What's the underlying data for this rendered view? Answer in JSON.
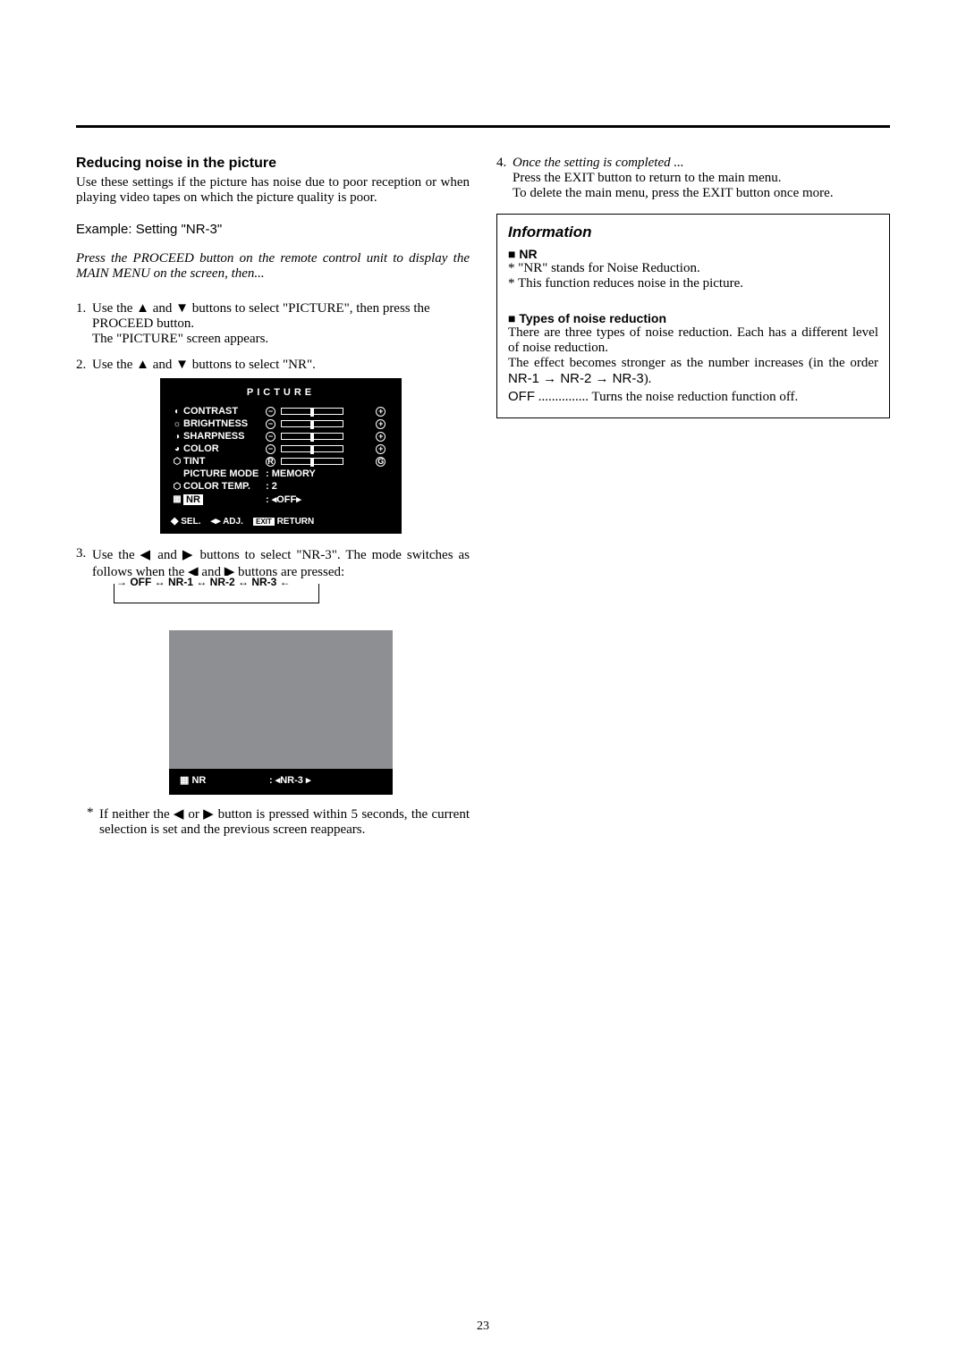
{
  "page_number": "23",
  "left": {
    "heading": "Reducing noise in the picture",
    "intro": "Use these settings if the picture has noise due to poor reception or when playing video tapes on which the picture quality is poor.",
    "example": "Example: Setting \"NR-3\"",
    "prep": "Press the PROCEED button on the remote control unit to display the MAIN MENU on the screen, then...",
    "step1_num": "1.",
    "step1a": "Use the ▲ and ▼ buttons to select \"PICTURE\", then press the PROCEED button.",
    "step1b": "The \"PICTURE\" screen appears.",
    "step2_num": "2.",
    "step2": "Use the ▲ and ▼ buttons to select \"NR\".",
    "menu1": {
      "title": "PICTURE",
      "contrast_ic": "◐",
      "contrast": "CONTRAST",
      "brightness_ic": "☼",
      "brightness": "BRIGHTNESS",
      "sharpness_ic": "◑",
      "sharpness": "SHARPNESS",
      "color_ic": "◕",
      "color": "COLOR",
      "tint_ic": "⬡",
      "tint": "TINT",
      "picmode": "PICTURE MODE",
      "picmode_val": ":   MEMORY",
      "colortemp_ic": "⬡",
      "colortemp": "COLOR TEMP.",
      "colortemp_val": ":   2",
      "nr_ic": "▦",
      "nr": "NR",
      "nr_val": ": ◂OFF▸",
      "R": "R",
      "G": "G",
      "foot_sel": "SEL.",
      "foot_adj": "ADJ.",
      "foot_exit": "EXIT",
      "foot_return": "RETURN"
    },
    "step3_num": "3.",
    "step3a": "Use the  ◀  and  ▶ buttons to select \"NR-3\". The mode switches as follows when the ◀ and ▶ buttons are pressed:",
    "cycle": "→ OFF ↔ NR-1 ↔ NR-2 ↔ NR-3 ←",
    "menu2": {
      "nr_ic": "▦",
      "nr": "NR",
      "nr_val": ": ◂NR-3 ▸"
    },
    "note_ast": "*",
    "note": "If neither the ◀ or ▶ button is pressed within 5 seconds, the current selection is set and the previous screen reappears."
  },
  "right": {
    "step4_num": "4.",
    "step4_it": "Once the setting is completed ...",
    "step4a": "Press the EXIT button to return to the main menu.",
    "step4b": "To delete the main menu, press the EXIT button once more.",
    "info": {
      "title": "Information",
      "nr_head": "■ NR",
      "line1": "* \"NR\" stands for Noise Reduction.",
      "line2": "* This function reduces noise in the picture.",
      "types_head": "■ Types of noise reduction",
      "types_p1": "There are three types of noise reduction. Each has a different level of noise reduction.",
      "types_p2": "The effect becomes stronger as the number increases (in the order ",
      "types_seq": "NR-1 → NR-2 → NR-3",
      "types_p2_end": ").",
      "off_label": "OFF",
      "off_dots": " ............... ",
      "off_desc": "Turns the noise reduction function off."
    }
  }
}
